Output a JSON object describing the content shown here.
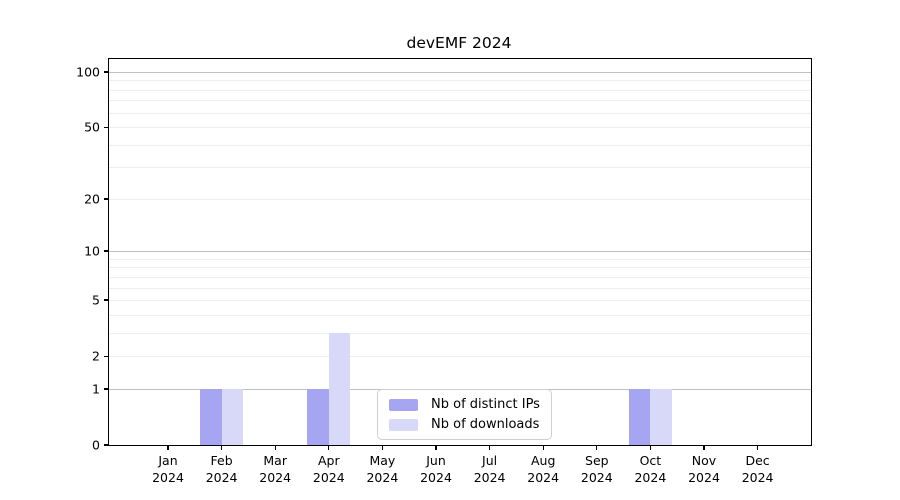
{
  "title": "devEMF 2024",
  "legend": {
    "items": [
      {
        "label": "Nb of distinct IPs",
        "color": "#a5a5f2"
      },
      {
        "label": "Nb of downloads",
        "color": "#d8d8f9"
      }
    ]
  },
  "chart_data": {
    "type": "bar",
    "title": "devEMF 2024",
    "categories": [
      "Jan",
      "Feb",
      "Mar",
      "Apr",
      "May",
      "Jun",
      "Jul",
      "Aug",
      "Sep",
      "Oct",
      "Nov",
      "Dec"
    ],
    "year_label": "2024",
    "series": [
      {
        "name": "Nb of distinct IPs",
        "color": "#a5a5f2",
        "values": [
          0,
          1,
          0,
          1,
          0,
          0,
          0,
          0,
          0,
          1,
          0,
          0
        ]
      },
      {
        "name": "Nb of downloads",
        "color": "#d8d8f9",
        "values": [
          0,
          1,
          0,
          3,
          0,
          0,
          0,
          0,
          0,
          1,
          0,
          0
        ]
      }
    ],
    "yscale": "log1p",
    "ylim": [
      0,
      100
    ],
    "yticks": [
      0,
      1,
      2,
      5,
      10,
      20,
      50,
      100
    ],
    "grid": true,
    "grid_major": [
      1,
      10,
      100
    ],
    "grid_minor": [
      2,
      3,
      4,
      5,
      6,
      7,
      8,
      9,
      20,
      30,
      40,
      50,
      60,
      70,
      80,
      90
    ],
    "legend_position": "lower center"
  }
}
